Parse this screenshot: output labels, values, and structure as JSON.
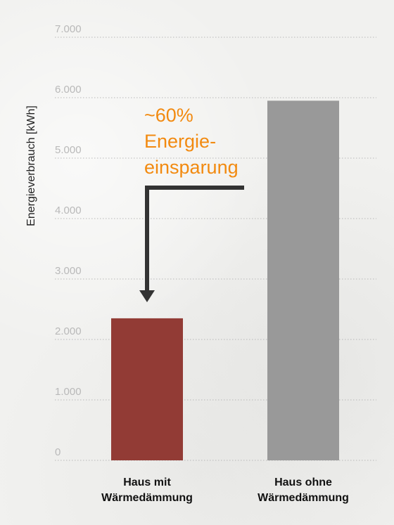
{
  "chart_data": {
    "type": "bar",
    "title": "",
    "ylabel": "Energieverbrauch [kWh]",
    "xlabel": "",
    "ylim": [
      0,
      7000
    ],
    "yticks": [
      0,
      1000,
      2000,
      3000,
      4000,
      5000,
      6000,
      7000
    ],
    "ytick_labels": [
      "0",
      "1.000",
      "2.000",
      "3.000",
      "4.000",
      "5.000",
      "6.000",
      "7.000"
    ],
    "categories": [
      [
        "Haus mit",
        "Wärmedämmung"
      ],
      [
        "Haus ohne",
        "Wärmedämmung"
      ]
    ],
    "values": [
      2350,
      5950
    ],
    "colors": [
      "#923b35",
      "#999999"
    ],
    "grid": true,
    "annotation": {
      "lines": [
        "~60%",
        "Energie-",
        "einsparung"
      ],
      "color": "#f28a10"
    },
    "arrow_color": "#333333"
  }
}
